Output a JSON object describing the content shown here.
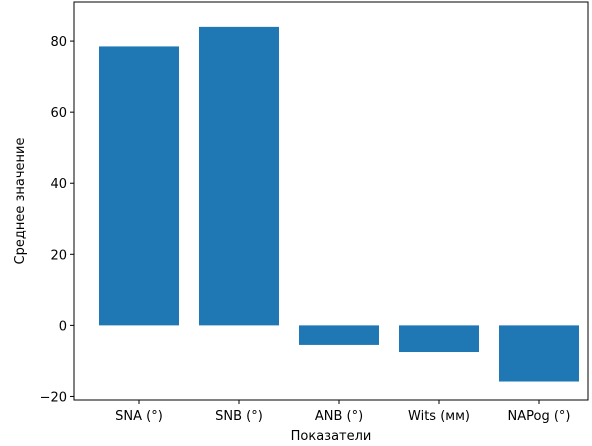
{
  "chart_data": {
    "type": "bar",
    "title": "",
    "categories": [
      "SNA (°)",
      "SNB (°)",
      "ANB (°)",
      "Wits (мм)",
      "NAPog (°)"
    ],
    "values": [
      78.5,
      84.0,
      -5.5,
      -7.5,
      -15.8
    ],
    "xlabel": "Показатели",
    "ylabel": "Среднее значение",
    "ylim": [
      -21.0,
      91.0
    ],
    "yticks": [
      -20,
      0,
      20,
      40,
      60,
      80
    ],
    "yticklabels": [
      "−20",
      "0",
      "20",
      "40",
      "60",
      "80"
    ],
    "bar_color": "#1f77b4",
    "grid": false,
    "legend": "none"
  }
}
